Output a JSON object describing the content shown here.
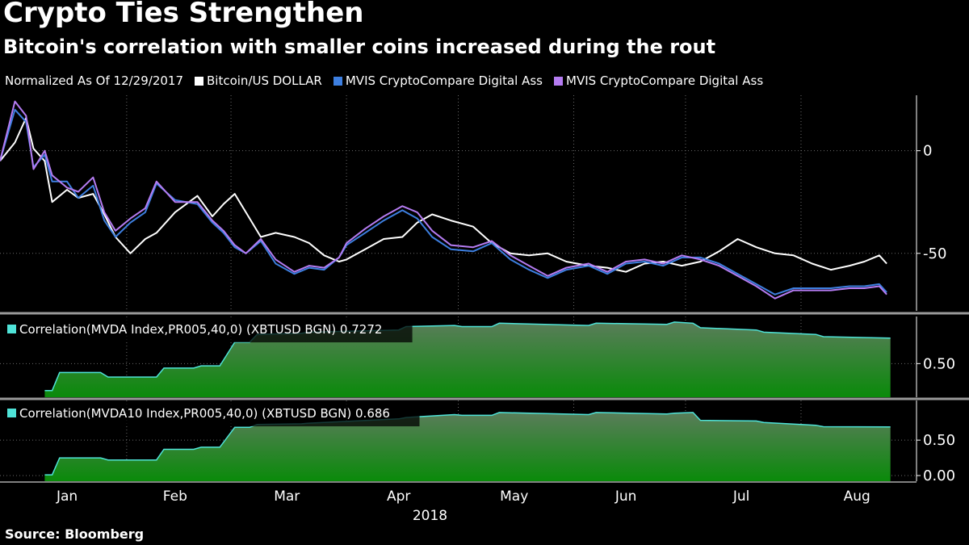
{
  "header": {
    "title": "Crypto Ties Strengthen",
    "subtitle": "Bitcoin's correlation with smaller coins increased during the rout"
  },
  "legend": {
    "normalized_label": "Normalized As Of 12/29/2017",
    "items": [
      {
        "label": "Bitcoin/US DOLLAR",
        "color": "#ffffff"
      },
      {
        "label": "MVIS CryptoCompare Digital Ass",
        "color": "#3d7fe0"
      },
      {
        "label": "MVIS CryptoCompare Digital Ass",
        "color": "#b57cf2"
      }
    ]
  },
  "footer": {
    "source": "Source: Bloomberg"
  },
  "colors": {
    "bitcoin": "#ffffff",
    "mvda": "#3d7fe0",
    "mvda10": "#b57cf2",
    "correlation_line": "#4fe3d8",
    "correlation_fill_top": "#5a7d5a",
    "correlation_fill_bottom": "#0a8a0a",
    "grid": "#6a6a6a",
    "separator": "#9a9a9a"
  },
  "chart_data": [
    {
      "type": "line",
      "ylim": [
        -78,
        27
      ],
      "yticks": [
        0,
        -50
      ],
      "ytick_labels": [
        "0",
        "-50"
      ],
      "grid": true,
      "x_month_ticks": [
        "Jan",
        "Feb",
        "Mar",
        "Apr",
        "May",
        "Jun",
        "Jul",
        "Aug"
      ],
      "x_year_label": "2018",
      "x": [
        "2017-12-29",
        "2018-01-02",
        "2018-01-05",
        "2018-01-07",
        "2018-01-10",
        "2018-01-12",
        "2018-01-16",
        "2018-01-19",
        "2018-01-23",
        "2018-01-26",
        "2018-01-29",
        "2018-02-02",
        "2018-02-06",
        "2018-02-09",
        "2018-02-14",
        "2018-02-20",
        "2018-02-24",
        "2018-02-27",
        "2018-03-02",
        "2018-03-05",
        "2018-03-09",
        "2018-03-13",
        "2018-03-18",
        "2018-03-22",
        "2018-03-26",
        "2018-03-30",
        "2018-04-01",
        "2018-04-06",
        "2018-04-11",
        "2018-04-16",
        "2018-04-20",
        "2018-04-24",
        "2018-04-29",
        "2018-05-05",
        "2018-05-10",
        "2018-05-15",
        "2018-05-20",
        "2018-05-25",
        "2018-05-30",
        "2018-06-05",
        "2018-06-10",
        "2018-06-15",
        "2018-06-20",
        "2018-06-25",
        "2018-06-30",
        "2018-07-05",
        "2018-07-10",
        "2018-07-15",
        "2018-07-20",
        "2018-07-25",
        "2018-07-30",
        "2018-08-04",
        "2018-08-09",
        "2018-08-14",
        "2018-08-18",
        "2018-08-22",
        "2018-08-24"
      ],
      "series": [
        {
          "name": "Bitcoin/US DOLLAR",
          "values": [
            -5,
            4,
            16,
            1,
            -5,
            -25,
            -19,
            -23,
            -21,
            -31,
            -42,
            -50,
            -43,
            -40,
            -30,
            -22,
            -32,
            -26,
            -21,
            -30,
            -42,
            -40,
            -42,
            -45,
            -51,
            -54,
            -53,
            -48,
            -43,
            -42,
            -35,
            -31,
            -34,
            -37,
            -45,
            -50,
            -51,
            -50,
            -54,
            -56,
            -57,
            -59,
            -55,
            -54,
            -56,
            -54,
            -49,
            -43,
            -47,
            -50,
            -51,
            -55,
            -58,
            -56,
            -54,
            -51,
            -55
          ]
        },
        {
          "name": "MVIS CryptoCompare Digital Ass",
          "values": [
            -5,
            20,
            14,
            -8,
            -2,
            -15,
            -15,
            -23,
            -17,
            -34,
            -42,
            -35,
            -30,
            -16,
            -24,
            -26,
            -35,
            -40,
            -47,
            -50,
            -44,
            -55,
            -60,
            -57,
            -58,
            -52,
            -46,
            -40,
            -34,
            -29,
            -33,
            -42,
            -48,
            -49,
            -45,
            -53,
            -58,
            -62,
            -58,
            -56,
            -60,
            -55,
            -54,
            -56,
            -52,
            -52,
            -55,
            -60,
            -65,
            -70,
            -67,
            -67,
            -67,
            -66,
            -66,
            -65,
            -69
          ]
        },
        {
          "name": "MVIS CryptoCompare Digital Ass",
          "values": [
            -5,
            24,
            17,
            -9,
            0,
            -12,
            -18,
            -20,
            -13,
            -30,
            -39,
            -33,
            -28,
            -15,
            -25,
            -25,
            -34,
            -39,
            -46,
            -50,
            -43,
            -53,
            -59,
            -56,
            -57,
            -52,
            -45,
            -38,
            -32,
            -27,
            -30,
            -39,
            -46,
            -47,
            -44,
            -51,
            -56,
            -61,
            -57,
            -55,
            -59,
            -54,
            -53,
            -55,
            -51,
            -53,
            -56,
            -61,
            -66,
            -72,
            -68,
            -68,
            -68,
            -67,
            -67,
            -66,
            -70
          ]
        }
      ]
    },
    {
      "type": "area",
      "series_label": "Correlation(MVDA Index,PR005,40,0) (XBTUSD BGN) 0.7272",
      "last_value": 0.7272,
      "ylim": [
        0.2,
        0.92
      ],
      "yticks": [
        0.5
      ],
      "ytick_labels": [
        "0.50"
      ],
      "x": [
        "2018-01-10",
        "2018-01-12",
        "2018-01-14",
        "2018-01-25",
        "2018-01-27",
        "2018-02-09",
        "2018-02-11",
        "2018-02-19",
        "2018-02-21",
        "2018-02-26",
        "2018-03-02",
        "2018-03-06",
        "2018-03-08",
        "2018-03-20",
        "2018-03-22",
        "2018-04-15",
        "2018-04-17",
        "2018-04-30",
        "2018-05-02",
        "2018-05-10",
        "2018-05-12",
        "2018-06-05",
        "2018-06-07",
        "2018-06-26",
        "2018-06-28",
        "2018-07-03",
        "2018-07-05",
        "2018-07-20",
        "2018-07-22",
        "2018-08-05",
        "2018-08-07",
        "2018-08-25"
      ],
      "values": [
        0.26,
        0.26,
        0.42,
        0.42,
        0.38,
        0.38,
        0.46,
        0.46,
        0.48,
        0.48,
        0.69,
        0.69,
        0.76,
        0.77,
        0.78,
        0.8,
        0.83,
        0.84,
        0.83,
        0.83,
        0.86,
        0.84,
        0.86,
        0.85,
        0.87,
        0.86,
        0.82,
        0.8,
        0.78,
        0.76,
        0.74,
        0.7272
      ]
    },
    {
      "type": "area",
      "series_label": "Correlation(MVDA10 Index,PR005,40,0) (XBTUSD BGN) 0.686",
      "last_value": 0.686,
      "ylim": [
        -0.08,
        1.06
      ],
      "yticks": [
        0.5,
        0.0
      ],
      "ytick_labels": [
        "0.50",
        "0.00"
      ],
      "x": [
        "2018-01-10",
        "2018-01-12",
        "2018-01-14",
        "2018-01-25",
        "2018-01-27",
        "2018-02-09",
        "2018-02-11",
        "2018-02-19",
        "2018-02-21",
        "2018-02-26",
        "2018-03-02",
        "2018-03-06",
        "2018-03-08",
        "2018-03-20",
        "2018-03-22",
        "2018-04-15",
        "2018-04-17",
        "2018-04-30",
        "2018-05-02",
        "2018-05-10",
        "2018-05-12",
        "2018-06-05",
        "2018-06-07",
        "2018-06-26",
        "2018-06-28",
        "2018-07-03",
        "2018-07-05",
        "2018-07-20",
        "2018-07-22",
        "2018-08-05",
        "2018-08-07",
        "2018-08-25"
      ],
      "values": [
        0.01,
        0.01,
        0.25,
        0.25,
        0.22,
        0.22,
        0.37,
        0.37,
        0.4,
        0.4,
        0.68,
        0.68,
        0.72,
        0.73,
        0.74,
        0.8,
        0.82,
        0.86,
        0.85,
        0.85,
        0.89,
        0.86,
        0.89,
        0.87,
        0.88,
        0.89,
        0.78,
        0.77,
        0.75,
        0.71,
        0.69,
        0.686
      ]
    }
  ]
}
